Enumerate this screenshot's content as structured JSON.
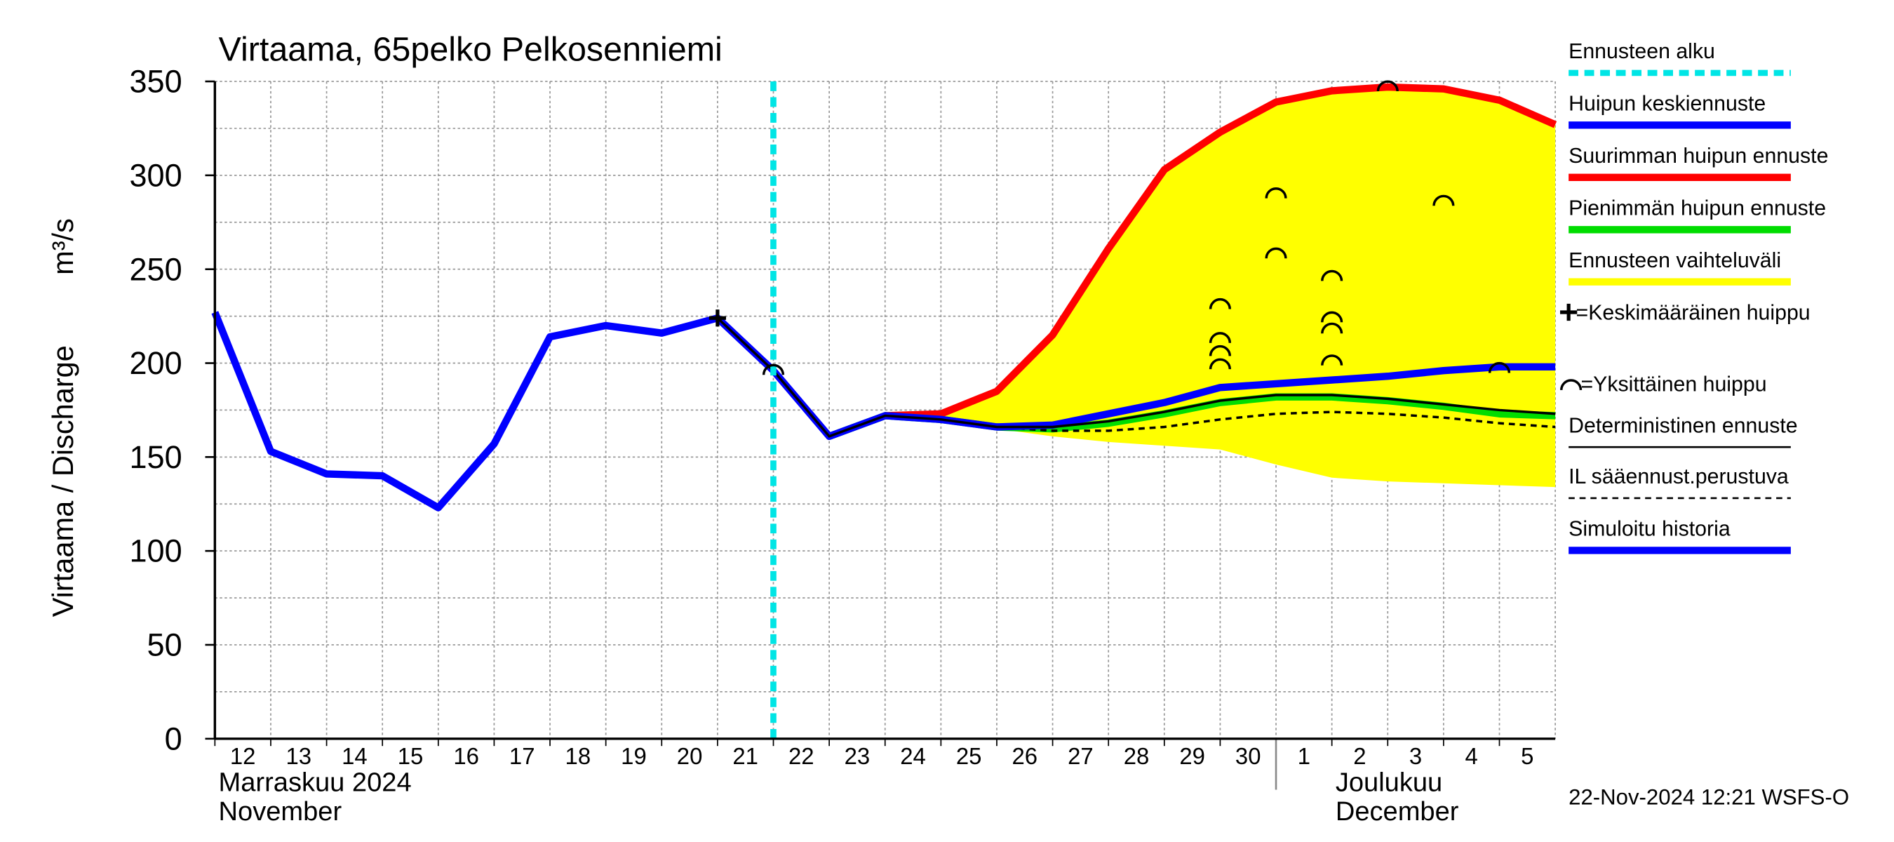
{
  "chart_data": {
    "type": "line",
    "title": "Virtaama, 65pelko Pelkosenniemi",
    "y_label": "Virtaama / Discharge",
    "y_unit": "m³/s",
    "footer": "22-Nov-2024 12:21 WSFS-O",
    "x": [
      "2024-11-12",
      "2024-11-13",
      "2024-11-14",
      "2024-11-15",
      "2024-11-16",
      "2024-11-17",
      "2024-11-18",
      "2024-11-19",
      "2024-11-20",
      "2024-11-21",
      "2024-11-22",
      "2024-11-23",
      "2024-11-24",
      "2024-11-25",
      "2024-11-26",
      "2024-11-27",
      "2024-11-28",
      "2024-11-29",
      "2024-11-30",
      "2024-12-01",
      "2024-12-02",
      "2024-12-03",
      "2024-12-04",
      "2024-12-05",
      "2024-12-06"
    ],
    "xlim": [
      "2024-11-12",
      "2024-12-06"
    ],
    "xticks": [
      {
        "value": "2024-11-12",
        "label": "12"
      },
      {
        "value": "2024-11-13",
        "label": "13"
      },
      {
        "value": "2024-11-14",
        "label": "14"
      },
      {
        "value": "2024-11-15",
        "label": "15"
      },
      {
        "value": "2024-11-16",
        "label": "16"
      },
      {
        "value": "2024-11-17",
        "label": "17"
      },
      {
        "value": "2024-11-18",
        "label": "18"
      },
      {
        "value": "2024-11-19",
        "label": "19"
      },
      {
        "value": "2024-11-20",
        "label": "20"
      },
      {
        "value": "2024-11-21",
        "label": "21"
      },
      {
        "value": "2024-11-22",
        "label": "22"
      },
      {
        "value": "2024-11-23",
        "label": "23"
      },
      {
        "value": "2024-11-24",
        "label": "24"
      },
      {
        "value": "2024-11-25",
        "label": "25"
      },
      {
        "value": "2024-11-26",
        "label": "26"
      },
      {
        "value": "2024-11-27",
        "label": "27"
      },
      {
        "value": "2024-11-28",
        "label": "28"
      },
      {
        "value": "2024-11-29",
        "label": "29"
      },
      {
        "value": "2024-11-30",
        "label": "30"
      },
      {
        "value": "2024-12-01",
        "label": "1"
      },
      {
        "value": "2024-12-02",
        "label": "2"
      },
      {
        "value": "2024-12-03",
        "label": "3"
      },
      {
        "value": "2024-12-04",
        "label": "4"
      },
      {
        "value": "2024-12-05",
        "label": "5"
      }
    ],
    "months": [
      {
        "name": "Marraskuu 2024",
        "name_en": "November",
        "x": "2024-11-12"
      },
      {
        "name": "Joulukuu",
        "name_en": "December",
        "x": "2024-12-02"
      }
    ],
    "ylim": [
      0,
      350
    ],
    "yticks": [
      0,
      50,
      100,
      150,
      200,
      250,
      300,
      350
    ],
    "y_minor_ticks": [
      25,
      75,
      125,
      175,
      225,
      275,
      325
    ],
    "grid": true,
    "forecast_start": {
      "name": "Ennusteen alku",
      "x": "2024-11-22",
      "color": "#00e5e5"
    },
    "series": [
      {
        "name": "Simuloitu historia",
        "color": "#0000ff",
        "style": "thick",
        "values": [
          227,
          153,
          141,
          140,
          123,
          157,
          214,
          220,
          216,
          224,
          196,
          null,
          null,
          null,
          null,
          null,
          null,
          null,
          null,
          null,
          null,
          null,
          null,
          null,
          null
        ]
      },
      {
        "name": "Huipun keskiennuste",
        "color": "#0000ff",
        "style": "thick",
        "values": [
          null,
          null,
          null,
          null,
          null,
          null,
          null,
          null,
          null,
          null,
          196,
          161,
          172,
          170,
          166,
          167,
          173,
          179,
          187,
          189,
          191,
          193,
          196,
          198,
          198
        ]
      },
      {
        "name": "Suurimman huipun ennuste",
        "color": "#ff0000",
        "style": "thick",
        "values": [
          null,
          null,
          null,
          null,
          null,
          null,
          null,
          null,
          null,
          null,
          null,
          null,
          172,
          173,
          185,
          215,
          261,
          303,
          323,
          339,
          345,
          347,
          346,
          340,
          327
        ]
      },
      {
        "name": "Pienimmän huipun ennuste",
        "color": "#00dd00",
        "style": "thick",
        "values": [
          null,
          null,
          null,
          null,
          null,
          null,
          null,
          null,
          null,
          null,
          null,
          161,
          172,
          170,
          166,
          165,
          168,
          173,
          179,
          182,
          182,
          180,
          177,
          173,
          172
        ]
      },
      {
        "name": "Ennusteen vaihteluväli",
        "color": "#ffff00",
        "style": "band",
        "values": [
          null,
          null,
          null,
          null,
          null,
          null,
          null,
          null,
          null,
          null,
          null,
          null,
          172,
          169,
          165,
          161,
          158,
          156,
          154,
          146,
          139,
          137,
          136,
          135,
          134
        ]
      },
      {
        "name": "Deterministinen ennuste",
        "color": "#000000",
        "style": "thin",
        "values": [
          null,
          null,
          null,
          null,
          null,
          null,
          null,
          null,
          null,
          224,
          196,
          161,
          172,
          170,
          166,
          166,
          169,
          174,
          180,
          183,
          183,
          181,
          178,
          175,
          173
        ]
      },
      {
        "name": "IL sääennust.perustuva",
        "color": "#000000",
        "style": "dashed",
        "values": [
          null,
          null,
          null,
          null,
          null,
          null,
          null,
          null,
          null,
          null,
          null,
          null,
          null,
          null,
          166,
          164,
          164,
          166,
          170,
          173,
          174,
          173,
          171,
          168,
          166
        ]
      }
    ],
    "mean_peak": {
      "name": "=Keskimääräinen huippu",
      "x": [
        "2024-11-21"
      ],
      "y": [
        224
      ]
    },
    "single_peaks": {
      "name": "=Yksittäinen huippu",
      "x": [
        "2024-11-22",
        "2024-11-30",
        "2024-11-30",
        "2024-11-30",
        "2024-11-30",
        "2024-12-01",
        "2024-12-01",
        "2024-12-02",
        "2024-12-02",
        "2024-12-02",
        "2024-12-02",
        "2024-12-03",
        "2024-12-04",
        "2024-12-05"
      ],
      "y": [
        197,
        232,
        214,
        207,
        200,
        291,
        259,
        247,
        225,
        219,
        202,
        348,
        287,
        198
      ]
    }
  }
}
